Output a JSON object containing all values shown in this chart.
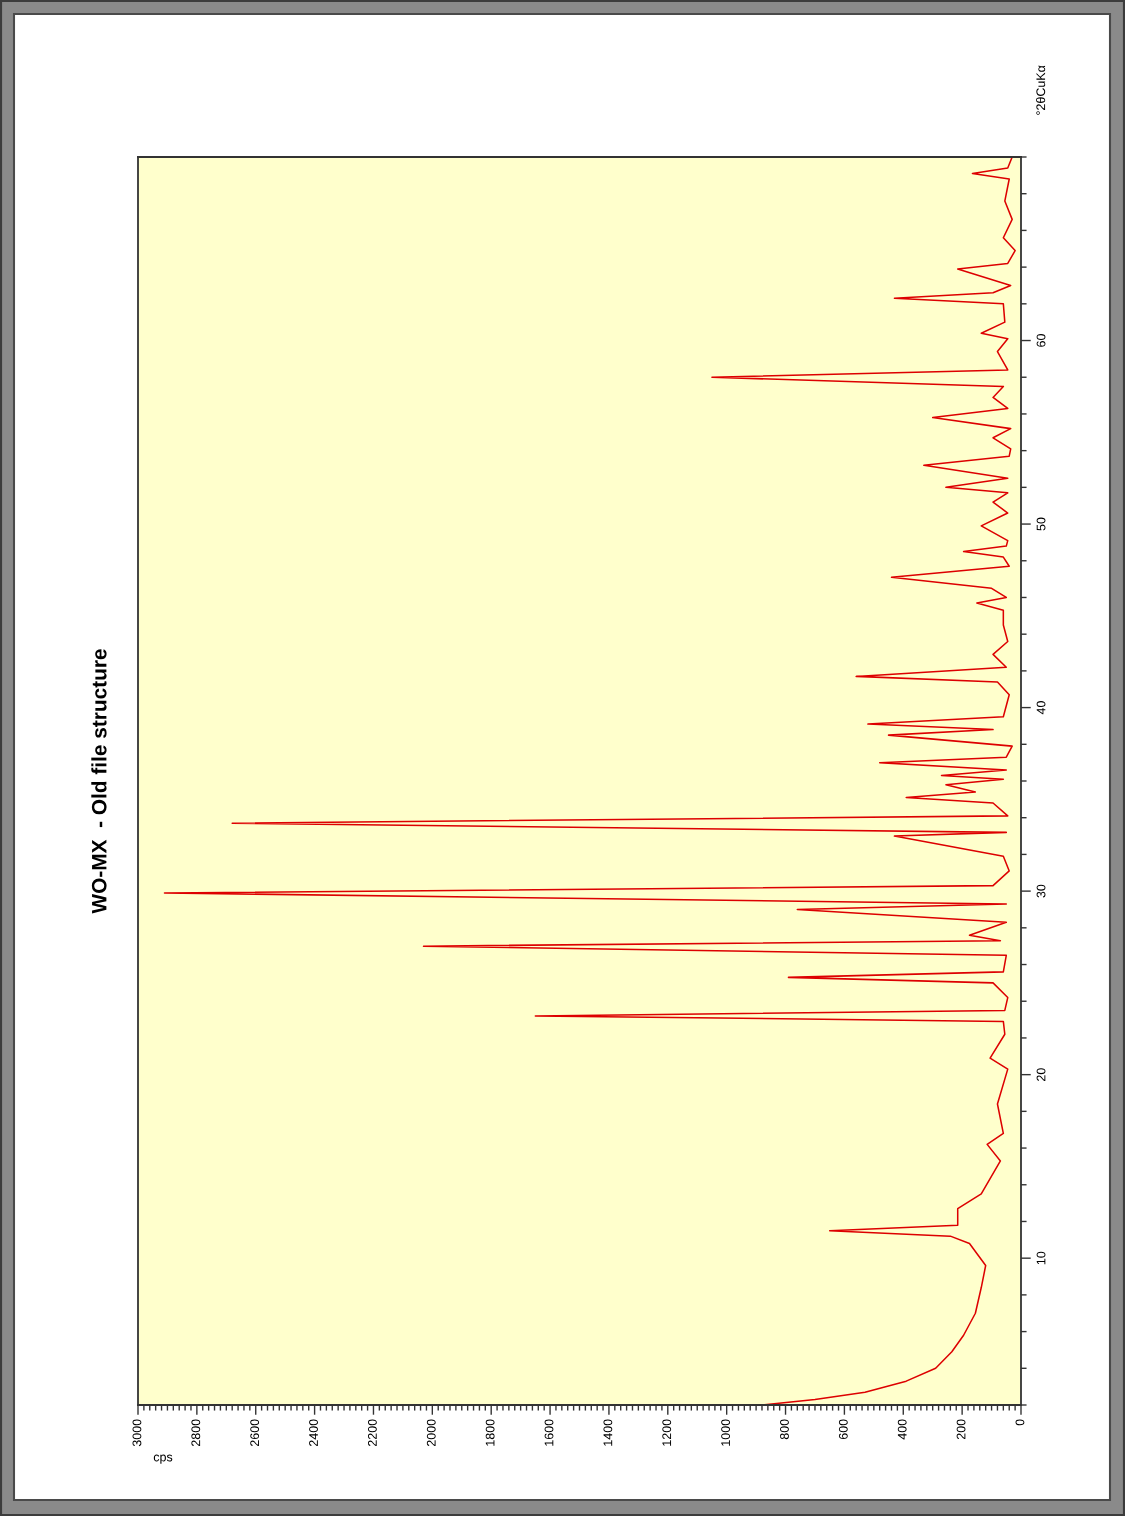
{
  "chart_data": {
    "type": "line",
    "title": "WO-MX  - Old file structure",
    "xlabel": "cps",
    "ylabel": "°2θCuKα",
    "x": [
      880,
      700,
      530,
      390,
      290,
      235,
      195,
      155,
      135,
      120,
      175,
      240,
      650,
      215,
      215,
      135,
      70,
      115,
      60,
      80,
      45,
      105,
      55,
      60,
      1650,
      55,
      45,
      95,
      790,
      60,
      50,
      2030,
      70,
      175,
      50,
      760,
      50,
      2910,
      95,
      40,
      60,
      430,
      50,
      2680,
      45,
      95,
      390,
      155,
      255,
      60,
      270,
      50,
      480,
      50,
      30,
      450,
      95,
      520,
      60,
      40,
      80,
      560,
      50,
      95,
      45,
      60,
      60,
      150,
      50,
      100,
      440,
      40,
      60,
      195,
      50,
      45,
      135,
      45,
      95,
      45,
      255,
      45,
      330,
      40,
      35,
      95,
      35,
      300,
      45,
      95,
      60,
      1050,
      45,
      80,
      45,
      135,
      55,
      60,
      430,
      95,
      35,
      215,
      45,
      20,
      60,
      30,
      55,
      40,
      165,
      45,
      30
    ],
    "series": [
      {
        "color": "#dd0000",
        "values": [
          2.0,
          2.3,
          2.7,
          3.3,
          4.0,
          4.9,
          5.8,
          7.0,
          8.4,
          9.6,
          10.8,
          11.2,
          11.5,
          11.8,
          12.7,
          13.5,
          15.3,
          16.2,
          16.8,
          18.4,
          20.3,
          20.9,
          22.2,
          22.9,
          23.2,
          23.5,
          24.2,
          25.0,
          25.3,
          25.6,
          26.5,
          27.0,
          27.3,
          27.6,
          28.3,
          29.0,
          29.3,
          29.9,
          30.3,
          31.1,
          31.9,
          33.0,
          33.2,
          33.7,
          34.1,
          34.8,
          35.1,
          35.4,
          35.8,
          36.1,
          36.3,
          36.6,
          37.0,
          37.3,
          37.9,
          38.5,
          38.8,
          39.1,
          39.5,
          40.7,
          41.4,
          41.7,
          42.2,
          42.9,
          43.6,
          44.5,
          45.3,
          45.7,
          46.0,
          46.5,
          47.1,
          47.7,
          48.2,
          48.5,
          48.8,
          49.1,
          49.9,
          50.6,
          51.2,
          51.7,
          52.0,
          52.5,
          53.2,
          53.7,
          54.1,
          54.7,
          55.2,
          55.8,
          56.3,
          56.9,
          57.5,
          58.0,
          58.4,
          59.4,
          60.1,
          60.4,
          61.0,
          62.0,
          62.3,
          62.6,
          63.0,
          63.9,
          64.2,
          64.9,
          65.6,
          66.6,
          67.6,
          68.8,
          69.1,
          69.4,
          70.0
        ]
      }
    ],
    "xlim": [
      3000,
      0
    ],
    "ylim": [
      2,
      70
    ],
    "xticks": [
      0,
      {
        "value": 20,
        "label": null
      },
      {
        "value": 40,
        "label": null
      },
      {
        "value": 60,
        "label": null
      },
      {
        "value": 80,
        "label": null
      },
      {
        "value": 100,
        "label": null
      },
      {
        "value": 120,
        "label": null
      },
      {
        "value": 140,
        "label": null
      },
      {
        "value": 160,
        "label": null
      },
      {
        "value": 180,
        "label": null
      },
      200,
      {
        "value": 220,
        "label": null
      },
      {
        "value": 240,
        "label": null
      },
      {
        "value": 260,
        "label": null
      },
      {
        "value": 280,
        "label": null
      },
      {
        "value": 300,
        "label": null
      },
      {
        "value": 320,
        "label": null
      },
      {
        "value": 340,
        "label": null
      },
      {
        "value": 360,
        "label": null
      },
      {
        "value": 380,
        "label": null
      },
      400,
      {
        "value": 420,
        "label": null
      },
      {
        "value": 440,
        "label": null
      },
      {
        "value": 460,
        "label": null
      },
      {
        "value": 480,
        "label": null
      },
      {
        "value": 500,
        "label": null
      },
      {
        "value": 520,
        "label": null
      },
      {
        "value": 540,
        "label": null
      },
      {
        "value": 560,
        "label": null
      },
      {
        "value": 580,
        "label": null
      },
      600,
      {
        "value": 620,
        "label": null
      },
      {
        "value": 640,
        "label": null
      },
      {
        "value": 660,
        "label": null
      },
      {
        "value": 680,
        "label": null
      },
      {
        "value": 700,
        "label": null
      },
      {
        "value": 720,
        "label": null
      },
      {
        "value": 740,
        "label": null
      },
      {
        "value": 760,
        "label": null
      },
      {
        "value": 780,
        "label": null
      },
      800,
      {
        "value": 820,
        "label": null
      },
      {
        "value": 840,
        "label": null
      },
      {
        "value": 860,
        "label": null
      },
      {
        "value": 880,
        "label": null
      },
      {
        "value": 900,
        "label": null
      },
      {
        "value": 920,
        "label": null
      },
      {
        "value": 940,
        "label": null
      },
      {
        "value": 960,
        "label": null
      },
      {
        "value": 980,
        "label": null
      },
      1000,
      {
        "value": 1020,
        "label": null
      },
      {
        "value": 1040,
        "label": null
      },
      {
        "value": 1060,
        "label": null
      },
      {
        "value": 1080,
        "label": null
      },
      {
        "value": 1100,
        "label": null
      },
      {
        "value": 1120,
        "label": null
      },
      {
        "value": 1140,
        "label": null
      },
      {
        "value": 1160,
        "label": null
      },
      {
        "value": 1180,
        "label": null
      },
      1200,
      {
        "value": 1220,
        "label": null
      },
      {
        "value": 1240,
        "label": null
      },
      {
        "value": 1260,
        "label": null
      },
      {
        "value": 1280,
        "label": null
      },
      {
        "value": 1300,
        "label": null
      },
      {
        "value": 1320,
        "label": null
      },
      {
        "value": 1340,
        "label": null
      },
      {
        "value": 1360,
        "label": null
      },
      {
        "value": 1380,
        "label": null
      },
      1400,
      {
        "value": 1420,
        "label": null
      },
      {
        "value": 1440,
        "label": null
      },
      {
        "value": 1460,
        "label": null
      },
      {
        "value": 1480,
        "label": null
      },
      {
        "value": 1500,
        "label": null
      },
      {
        "value": 1520,
        "label": null
      },
      {
        "value": 1540,
        "label": null
      },
      {
        "value": 1560,
        "label": null
      },
      {
        "value": 1580,
        "label": null
      },
      1600,
      {
        "value": 1620,
        "label": null
      },
      {
        "value": 1640,
        "label": null
      },
      {
        "value": 1660,
        "label": null
      },
      {
        "value": 1680,
        "label": null
      },
      {
        "value": 1700,
        "label": null
      },
      {
        "value": 1720,
        "label": null
      },
      {
        "value": 1740,
        "label": null
      },
      {
        "value": 1760,
        "label": null
      },
      {
        "value": 1780,
        "label": null
      },
      1800,
      {
        "value": 1820,
        "label": null
      },
      {
        "value": 1840,
        "label": null
      },
      {
        "value": 1860,
        "label": null
      },
      {
        "value": 1880,
        "label": null
      },
      {
        "value": 1900,
        "label": null
      },
      {
        "value": 1920,
        "label": null
      },
      {
        "value": 1940,
        "label": null
      },
      {
        "value": 1960,
        "label": null
      },
      {
        "value": 1980,
        "label": null
      },
      2000,
      {
        "value": 2020,
        "label": null
      },
      {
        "value": 2040,
        "label": null
      },
      {
        "value": 2060,
        "label": null
      },
      {
        "value": 2080,
        "label": null
      },
      {
        "value": 2100,
        "label": null
      },
      {
        "value": 2120,
        "label": null
      },
      {
        "value": 2140,
        "label": null
      },
      {
        "value": 2160,
        "label": null
      },
      {
        "value": 2180,
        "label": null
      },
      2200,
      {
        "value": 2220,
        "label": null
      },
      {
        "value": 2240,
        "label": null
      },
      {
        "value": 2260,
        "label": null
      },
      {
        "value": 2280,
        "label": null
      },
      {
        "value": 2300,
        "label": null
      },
      {
        "value": 2320,
        "label": null
      },
      {
        "value": 2340,
        "label": null
      },
      {
        "value": 2360,
        "label": null
      },
      {
        "value": 2380,
        "label": null
      },
      2400,
      {
        "value": 2420,
        "label": null
      },
      {
        "value": 2440,
        "label": null
      },
      {
        "value": 2460,
        "label": null
      },
      {
        "value": 2480,
        "label": null
      },
      {
        "value": 2500,
        "label": null
      },
      {
        "value": 2520,
        "label": null
      },
      {
        "value": 2540,
        "label": null
      },
      {
        "value": 2560,
        "label": null
      },
      {
        "value": 2580,
        "label": null
      },
      2600,
      {
        "value": 2620,
        "label": null
      },
      {
        "value": 2640,
        "label": null
      },
      {
        "value": 2660,
        "label": null
      },
      {
        "value": 2680,
        "label": null
      },
      {
        "value": 2700,
        "label": null
      },
      {
        "value": 2720,
        "label": null
      },
      {
        "value": 2740,
        "label": null
      },
      {
        "value": 2760,
        "label": null
      },
      {
        "value": 2780,
        "label": null
      },
      2800,
      {
        "value": 2820,
        "label": null
      },
      {
        "value": 2840,
        "label": null
      },
      {
        "value": 2860,
        "label": null
      },
      {
        "value": 2880,
        "label": null
      },
      {
        "value": 2900,
        "label": null
      },
      {
        "value": 2920,
        "label": null
      },
      {
        "value": 2940,
        "label": null
      },
      {
        "value": 2960,
        "label": null
      },
      {
        "value": 2980,
        "label": null
      },
      3000
    ],
    "yticks": [
      {
        "value": 2,
        "label": null
      },
      {
        "value": 4,
        "label": null
      },
      {
        "value": 6,
        "label": null
      },
      {
        "value": 8,
        "label": null
      },
      10,
      {
        "value": 12,
        "label": null
      },
      {
        "value": 14,
        "label": null
      },
      {
        "value": 16,
        "label": null
      },
      {
        "value": 18,
        "label": null
      },
      20,
      {
        "value": 22,
        "label": null
      },
      {
        "value": 24,
        "label": null
      },
      {
        "value": 26,
        "label": null
      },
      {
        "value": 28,
        "label": null
      },
      30,
      {
        "value": 32,
        "label": null
      },
      {
        "value": 34,
        "label": null
      },
      {
        "value": 36,
        "label": null
      },
      {
        "value": 38,
        "label": null
      },
      40,
      {
        "value": 42,
        "label": null
      },
      {
        "value": 44,
        "label": null
      },
      {
        "value": 46,
        "label": null
      },
      {
        "value": 48,
        "label": null
      },
      50,
      {
        "value": 52,
        "label": null
      },
      {
        "value": 54,
        "label": null
      },
      {
        "value": 56,
        "label": null
      },
      {
        "value": 58,
        "label": null
      },
      60,
      {
        "value": 62,
        "label": null
      },
      {
        "value": 64,
        "label": null
      },
      {
        "value": 66,
        "label": null
      },
      {
        "value": 68,
        "label": null
      },
      {
        "value": 70,
        "label": null
      }
    ]
  }
}
